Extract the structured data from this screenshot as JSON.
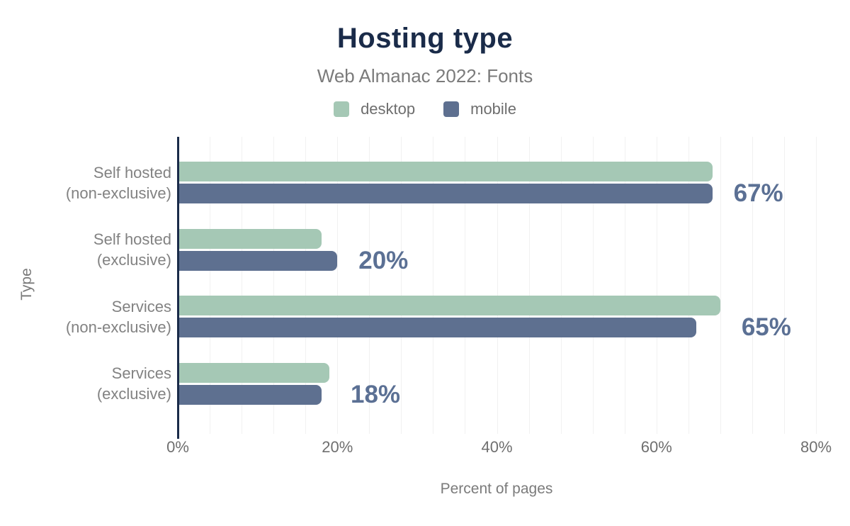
{
  "chart": {
    "title": "Hosting type",
    "subtitle": "Web Almanac 2022: Fonts",
    "xlabel": "Percent of pages",
    "ylabel": "Type"
  },
  "legend": {
    "position": "top-center",
    "items": [
      {
        "label": "desktop",
        "color": "#a5c8b5"
      },
      {
        "label": "mobile",
        "color": "#5e7090"
      }
    ]
  },
  "colors": {
    "title_navy": "#1a2b49",
    "axis_line": "#1a2b49",
    "desktop_bar": "#a5c8b5",
    "mobile_bar": "#5e7090",
    "value_label": "#5b7094",
    "muted_text": "#7b7b7b",
    "gridline": "#f1f1f1",
    "background": "#ffffff"
  },
  "chart_data": {
    "type": "bar",
    "orientation": "horizontal",
    "title": "Hosting type",
    "subtitle": "Web Almanac 2022: Fonts",
    "xlabel": "Percent of pages",
    "ylabel": "Type",
    "xlim": [
      0,
      80
    ],
    "grid": "vertical-minor",
    "grid_step_percent": 4,
    "legend_position": "top",
    "categories": [
      "Self hosted (non-exclusive)",
      "Self hosted (exclusive)",
      "Services (non-exclusive)",
      "Services (exclusive)"
    ],
    "category_lines": [
      [
        "Self hosted",
        "(non-exclusive)"
      ],
      [
        "Self hosted",
        "(exclusive)"
      ],
      [
        "Services",
        "(non-exclusive)"
      ],
      [
        "Services",
        "(exclusive)"
      ]
    ],
    "series": [
      {
        "name": "desktop",
        "color": "#a5c8b5",
        "values": [
          67,
          18,
          68,
          19
        ]
      },
      {
        "name": "mobile",
        "color": "#5e7090",
        "values": [
          67,
          20,
          65,
          18
        ]
      }
    ],
    "value_labels": [
      "67%",
      "20%",
      "65%",
      "18%"
    ],
    "x_ticks": [
      {
        "value": 0,
        "label": "0%"
      },
      {
        "value": 20,
        "label": "20%"
      },
      {
        "value": 40,
        "label": "40%"
      },
      {
        "value": 60,
        "label": "60%"
      },
      {
        "value": 80,
        "label": "80%"
      }
    ]
  }
}
